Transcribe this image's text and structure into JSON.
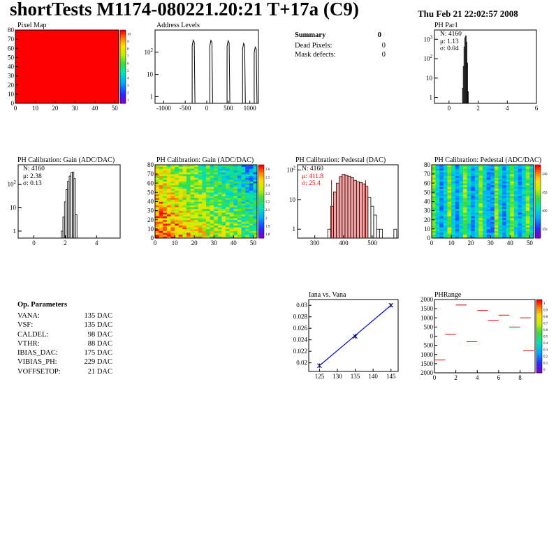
{
  "header": {
    "title": "shortTests M1174-080221.20:21 T+17a (C9)",
    "date": "Thu Feb 21 22:02:57 2008"
  },
  "summary": {
    "title": "Summary",
    "title_value": "0",
    "rows": [
      {
        "label": "Dead Pixels:",
        "value": "0"
      },
      {
        "label": "Mask defects:",
        "value": "0"
      }
    ]
  },
  "op_params": {
    "title": "Op. Parameters",
    "rows": [
      {
        "name": "VANA:",
        "value": "135 DAC"
      },
      {
        "name": "VSF:",
        "value": "135 DAC"
      },
      {
        "name": "CALDEL:",
        "value": "98 DAC"
      },
      {
        "name": "VTHR:",
        "value": "88 DAC"
      },
      {
        "name": "IBIAS_DAC:",
        "value": "175 DAC"
      },
      {
        "name": "VIBIAS_PH:",
        "value": "229 DAC"
      },
      {
        "name": "VOFFSETOP:",
        "value": "21 DAC"
      }
    ]
  },
  "chart_data": [
    {
      "id": "pixel-map",
      "type": "heatmap",
      "title": "Pixel Map",
      "xlim": [
        0,
        52
      ],
      "ylim": [
        0,
        80
      ],
      "x_ticks": [
        "0",
        "10",
        "20",
        "30",
        "40",
        "50"
      ],
      "y_ticks": [
        "0",
        "10",
        "20",
        "30",
        "40",
        "50",
        "60",
        "70",
        "80"
      ],
      "z_ticks": [
        "1",
        "2",
        "3",
        "4",
        "5",
        "6",
        "7",
        "8",
        "9",
        "10"
      ],
      "uniform_value": 10,
      "fill_color": "#ff0000"
    },
    {
      "id": "address-levels",
      "type": "bar",
      "title": "Address Levels",
      "xlim": [
        -1200,
        1200
      ],
      "log_y": true,
      "ylim": [
        0.5,
        1000
      ],
      "x_ticks": [
        "-1000",
        "-500",
        "0",
        "500",
        "1000"
      ],
      "y_ticks": [
        "1",
        "10",
        "10^2"
      ],
      "peaks": [
        {
          "center": -290,
          "height": 350
        },
        {
          "center": 120,
          "height": 340
        },
        {
          "center": 520,
          "height": 330
        },
        {
          "center": 880,
          "height": 250
        },
        {
          "center": 1150,
          "height": 170
        }
      ]
    },
    {
      "id": "ph-par1",
      "type": "bar",
      "title": "PH Par1",
      "xlim": [
        -1,
        6
      ],
      "log_y": true,
      "ylim": [
        0.5,
        3000
      ],
      "x_ticks": [
        "0",
        "2",
        "4",
        "6"
      ],
      "y_ticks": [
        "1",
        "10",
        "10^2",
        "10^3"
      ],
      "stats": {
        "n": "N: 4160",
        "mean": "μ: 1.13",
        "sigma": "σ: 0.04"
      },
      "x": [
        0.95,
        1.0,
        1.05,
        1.1,
        1.15,
        1.2,
        1.25,
        1.3
      ],
      "values": [
        3,
        40,
        400,
        1200,
        1500,
        700,
        60,
        2
      ]
    },
    {
      "id": "gain-1d",
      "type": "bar",
      "title": "PH Calibration: Gain (ADC/DAC)",
      "xlim": [
        -1,
        5.5
      ],
      "log_y": true,
      "ylim": [
        0.5,
        700
      ],
      "x_ticks": [
        "0",
        "2",
        "4"
      ],
      "y_ticks": [
        "1",
        "10",
        "10^2"
      ],
      "stats": {
        "n": "N: 4160",
        "mean": "μ: 2.38",
        "sigma": "σ: 0.13"
      },
      "x": [
        1.8,
        1.9,
        2.0,
        2.1,
        2.2,
        2.3,
        2.4,
        2.5,
        2.6,
        2.7
      ],
      "values": [
        1,
        4,
        18,
        60,
        140,
        230,
        320,
        340,
        180,
        5
      ]
    },
    {
      "id": "gain-map",
      "type": "heatmap",
      "title": "PH Calibration: Gain (ADC/DAC)",
      "xlim": [
        0,
        52
      ],
      "ylim": [
        0,
        80
      ],
      "x_ticks": [
        "0",
        "10",
        "20",
        "30",
        "40",
        "50"
      ],
      "y_ticks": [
        "0",
        "10",
        "20",
        "30",
        "40",
        "50",
        "60",
        "70",
        "80"
      ],
      "z_ticks": [
        "1.8",
        "1.9",
        "2",
        "2.1",
        "2.2",
        "2.3",
        "2.4",
        "2.5",
        "2.6"
      ],
      "zlim": [
        1.75,
        2.65
      ]
    },
    {
      "id": "pedestal-1d",
      "type": "bar",
      "title": "PH Calibration: Pedestal (DAC)",
      "xlim": [
        240,
        590
      ],
      "log_y": true,
      "ylim": [
        0.5,
        150
      ],
      "x_ticks": [
        "300",
        "400",
        "500"
      ],
      "y_ticks": [
        "1",
        "10",
        "10^2"
      ],
      "stats": {
        "n": "N: 4160",
        "mean": "μ: 411.8",
        "sigma": "σ: 25.4"
      },
      "fit_lines": [
        358,
        477
      ],
      "x": [
        350,
        360,
        370,
        380,
        390,
        400,
        410,
        420,
        430,
        440,
        450,
        460,
        470,
        480,
        490,
        500,
        510,
        520,
        530,
        580
      ],
      "values": [
        1,
        6,
        18,
        36,
        60,
        72,
        66,
        62,
        55,
        45,
        40,
        38,
        34,
        28,
        12,
        6,
        3,
        1,
        1,
        1
      ]
    },
    {
      "id": "pedestal-map",
      "type": "heatmap",
      "title": "PH Calibration: Pedestal (ADC/DAC)",
      "xlim": [
        0,
        52
      ],
      "ylim": [
        0,
        80
      ],
      "x_ticks": [
        "0",
        "10",
        "20",
        "30",
        "40",
        "50"
      ],
      "y_ticks": [
        "0",
        "10",
        "20",
        "30",
        "40",
        "50",
        "60",
        "70",
        "80"
      ],
      "z_ticks": [
        "350",
        "400",
        "450",
        "500"
      ],
      "zlim": [
        340,
        520
      ]
    },
    {
      "id": "iana-vana",
      "type": "line",
      "title": "Iana vs. Vana",
      "xlim": [
        122,
        147
      ],
      "ylim": [
        0.0185,
        0.031
      ],
      "x_ticks": [
        "125",
        "130",
        "135",
        "140",
        "145"
      ],
      "y_ticks": [
        "0.02",
        "0.022",
        "0.024",
        "0.026",
        "0.028",
        "0.03"
      ],
      "x": [
        125,
        135,
        145
      ],
      "y": [
        0.0195,
        0.0246,
        0.03
      ]
    },
    {
      "id": "phrange",
      "type": "scatter",
      "title": "PHRange",
      "xlim": [
        0,
        9.4
      ],
      "ylim": [
        -2000,
        2000
      ],
      "x_ticks": [
        "0",
        "2",
        "4",
        "6",
        "8"
      ],
      "y_ticks": [
        "2000",
        "1500",
        "1000",
        "500",
        "0",
        "500",
        "1000",
        "1500",
        "2000"
      ],
      "z_ticks": [
        "0",
        "0.1",
        "0.2",
        "0.3",
        "0.4",
        "0.5",
        "0.6",
        "0.7",
        "0.8",
        "0.9",
        "1"
      ],
      "segments": [
        {
          "x0": 0,
          "x1": 1,
          "y": -1300
        },
        {
          "x0": 1,
          "x1": 2,
          "y": 100
        },
        {
          "x0": 2,
          "x1": 3,
          "y": 1700
        },
        {
          "x0": 3,
          "x1": 4,
          "y": -300
        },
        {
          "x0": 4,
          "x1": 5,
          "y": 1400
        },
        {
          "x0": 5,
          "x1": 6,
          "y": 850
        },
        {
          "x0": 6,
          "x1": 7,
          "y": 1150
        },
        {
          "x0": 7,
          "x1": 8,
          "y": 500
        },
        {
          "x0": 8,
          "x1": 9,
          "y": 1000
        },
        {
          "x0": 8.3,
          "x1": 9.3,
          "y": -800
        }
      ]
    }
  ]
}
